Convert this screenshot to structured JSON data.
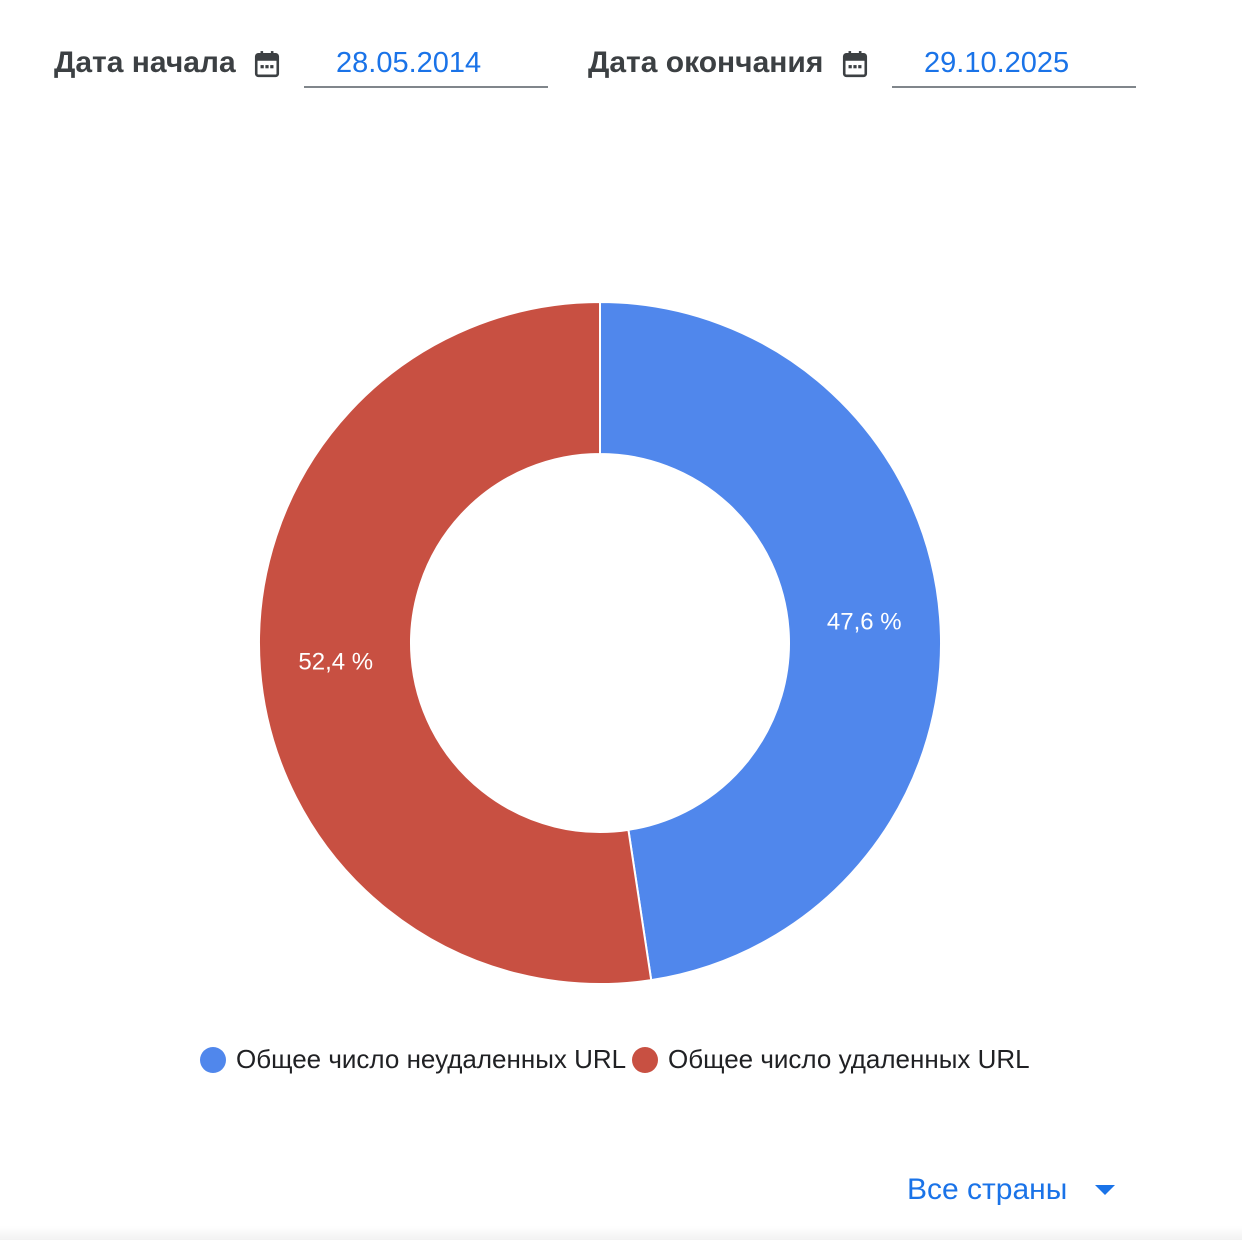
{
  "date_range": {
    "start_label": "Дата начала",
    "start_value": "28.05.2014",
    "end_label": "Дата окончания",
    "end_value": "29.10.2025"
  },
  "colors": {
    "label": "#3c4043",
    "accent": "#1a73e8",
    "series_not_removed": "#5087ec",
    "series_removed": "#c85042"
  },
  "chart_data": {
    "type": "pie",
    "donut": true,
    "labels": [
      "Общее число неудаленных URL",
      "Общее число удаленных URL"
    ],
    "values": [
      47.6,
      52.4
    ],
    "slice_labels": [
      "47,6 %",
      "52,4 %"
    ],
    "colors": [
      "#5087ec",
      "#c85042"
    ],
    "legend_position": "bottom"
  },
  "country_filter": {
    "label": "Все страны",
    "icon": "dropdown-arrow-icon"
  }
}
